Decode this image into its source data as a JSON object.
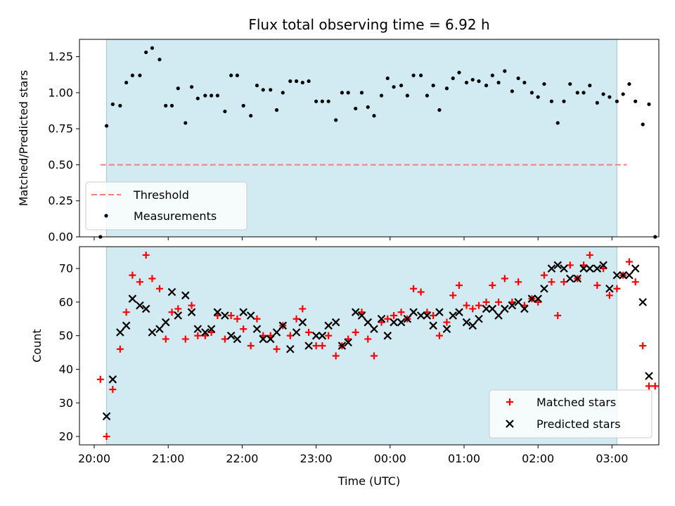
{
  "chart_data": [
    {
      "type": "scatter",
      "title": "Flux total observing time = 6.92 h",
      "xlabel": "",
      "ylabel": "Matched/Predicted stars",
      "ylim": [
        0,
        1.37
      ],
      "yticks": [
        "0.00",
        "0.25",
        "0.50",
        "0.75",
        "1.00",
        "1.25"
      ],
      "shaded_interval": [
        "20:10",
        "03:04"
      ],
      "shade_color": "#add8e6",
      "threshold": {
        "name": "Threshold",
        "value": 0.5,
        "x_range": [
          "20:05",
          "03:12"
        ],
        "color": "#f08080"
      },
      "legend": {
        "position": "lower-left",
        "entries": [
          "Threshold",
          "Measurements"
        ]
      },
      "series": [
        {
          "name": "Measurements",
          "color": "#000000",
          "points": [
            [
              "20:05",
              0.0
            ],
            [
              "20:10",
              0.77
            ],
            [
              "20:15",
              0.92
            ],
            [
              "20:21",
              0.91
            ],
            [
              "20:26",
              1.07
            ],
            [
              "20:31",
              1.12
            ],
            [
              "20:37",
              1.12
            ],
            [
              "20:42",
              1.28
            ],
            [
              "20:47",
              1.31
            ],
            [
              "20:53",
              1.23
            ],
            [
              "20:58",
              0.91
            ],
            [
              "21:03",
              0.91
            ],
            [
              "21:08",
              1.03
            ],
            [
              "21:14",
              0.79
            ],
            [
              "21:19",
              1.04
            ],
            [
              "21:24",
              0.96
            ],
            [
              "21:30",
              0.98
            ],
            [
              "21:35",
              0.98
            ],
            [
              "21:40",
              0.98
            ],
            [
              "21:46",
              0.87
            ],
            [
              "21:51",
              1.12
            ],
            [
              "21:56",
              1.12
            ],
            [
              "22:01",
              0.91
            ],
            [
              "22:07",
              0.84
            ],
            [
              "22:12",
              1.05
            ],
            [
              "22:17",
              1.02
            ],
            [
              "22:23",
              1.02
            ],
            [
              "22:28",
              0.88
            ],
            [
              "22:33",
              1.0
            ],
            [
              "22:39",
              1.08
            ],
            [
              "22:44",
              1.08
            ],
            [
              "22:49",
              1.07
            ],
            [
              "22:54",
              1.08
            ],
            [
              "23:00",
              0.94
            ],
            [
              "23:05",
              0.94
            ],
            [
              "23:10",
              0.94
            ],
            [
              "23:16",
              0.81
            ],
            [
              "23:21",
              1.0
            ],
            [
              "23:26",
              1.0
            ],
            [
              "23:32",
              0.89
            ],
            [
              "23:37",
              1.0
            ],
            [
              "23:42",
              0.9
            ],
            [
              "23:47",
              0.84
            ],
            [
              "23:53",
              0.98
            ],
            [
              "23:58",
              1.1
            ],
            [
              "00:03",
              1.04
            ],
            [
              "00:09",
              1.05
            ],
            [
              "00:14",
              0.98
            ],
            [
              "00:19",
              1.12
            ],
            [
              "00:25",
              1.12
            ],
            [
              "00:30",
              0.98
            ],
            [
              "00:35",
              1.05
            ],
            [
              "00:40",
              0.88
            ],
            [
              "00:46",
              1.03
            ],
            [
              "00:51",
              1.1
            ],
            [
              "00:56",
              1.14
            ],
            [
              "01:02",
              1.07
            ],
            [
              "01:07",
              1.09
            ],
            [
              "01:12",
              1.08
            ],
            [
              "01:18",
              1.05
            ],
            [
              "01:23",
              1.12
            ],
            [
              "01:28",
              1.07
            ],
            [
              "01:33",
              1.15
            ],
            [
              "01:39",
              1.01
            ],
            [
              "01:44",
              1.1
            ],
            [
              "01:49",
              1.07
            ],
            [
              "01:55",
              1.0
            ],
            [
              "02:00",
              0.97
            ],
            [
              "02:05",
              1.06
            ],
            [
              "02:11",
              0.94
            ],
            [
              "02:16",
              0.79
            ],
            [
              "02:21",
              0.94
            ],
            [
              "02:26",
              1.06
            ],
            [
              "02:32",
              1.0
            ],
            [
              "02:37",
              1.0
            ],
            [
              "02:42",
              1.05
            ],
            [
              "02:48",
              0.93
            ],
            [
              "02:53",
              0.99
            ],
            [
              "02:58",
              0.97
            ],
            [
              "03:04",
              0.94
            ],
            [
              "03:09",
              0.99
            ],
            [
              "03:14",
              1.06
            ],
            [
              "03:19",
              0.94
            ],
            [
              "03:25",
              0.78
            ],
            [
              "03:30",
              0.92
            ],
            [
              "03:35",
              0.0
            ]
          ]
        }
      ]
    },
    {
      "type": "scatter",
      "title": "",
      "xlabel": "Time (UTC)",
      "ylabel": "Count",
      "ylim": [
        17.5,
        76.5
      ],
      "yticks": [
        "20",
        "30",
        "40",
        "50",
        "60",
        "70"
      ],
      "xticks": [
        "20:00",
        "21:00",
        "22:00",
        "23:00",
        "00:00",
        "01:00",
        "02:00",
        "03:00"
      ],
      "shaded_interval": [
        "20:10",
        "03:04"
      ],
      "shade_color": "#add8e6",
      "legend": {
        "position": "lower-right",
        "entries": [
          "Matched stars",
          "Predicted stars"
        ]
      },
      "series": [
        {
          "name": "Matched stars",
          "marker": "plus",
          "color": "#ff0000",
          "points": [
            [
              "20:05",
              37
            ],
            [
              "20:10",
              20
            ],
            [
              "20:15",
              34
            ],
            [
              "20:21",
              46
            ],
            [
              "20:26",
              57
            ],
            [
              "20:31",
              68
            ],
            [
              "20:37",
              66
            ],
            [
              "20:42",
              74
            ],
            [
              "20:47",
              67
            ],
            [
              "20:53",
              64
            ],
            [
              "20:58",
              49
            ],
            [
              "21:03",
              57
            ],
            [
              "21:08",
              58
            ],
            [
              "21:14",
              49
            ],
            [
              "21:19",
              59
            ],
            [
              "21:24",
              50
            ],
            [
              "21:30",
              50
            ],
            [
              "21:35",
              51
            ],
            [
              "21:40",
              56
            ],
            [
              "21:46",
              49
            ],
            [
              "21:51",
              56
            ],
            [
              "21:56",
              55
            ],
            [
              "22:01",
              52
            ],
            [
              "22:07",
              47
            ],
            [
              "22:12",
              55
            ],
            [
              "22:17",
              50
            ],
            [
              "22:23",
              50
            ],
            [
              "22:28",
              46
            ],
            [
              "22:33",
              53
            ],
            [
              "22:39",
              50
            ],
            [
              "22:44",
              55
            ],
            [
              "22:49",
              58
            ],
            [
              "22:54",
              51
            ],
            [
              "23:00",
              47
            ],
            [
              "23:05",
              47
            ],
            [
              "23:10",
              50
            ],
            [
              "23:16",
              44
            ],
            [
              "23:21",
              47
            ],
            [
              "23:26",
              49
            ],
            [
              "23:32",
              51
            ],
            [
              "23:37",
              57
            ],
            [
              "23:42",
              49
            ],
            [
              "23:47",
              44
            ],
            [
              "23:53",
              54
            ],
            [
              "23:58",
              55
            ],
            [
              "00:03",
              56
            ],
            [
              "00:09",
              57
            ],
            [
              "00:14",
              55
            ],
            [
              "00:19",
              64
            ],
            [
              "00:25",
              63
            ],
            [
              "00:30",
              57
            ],
            [
              "00:35",
              56
            ],
            [
              "00:40",
              50
            ],
            [
              "00:46",
              54
            ],
            [
              "00:51",
              62
            ],
            [
              "00:56",
              65
            ],
            [
              "01:02",
              59
            ],
            [
              "01:07",
              58
            ],
            [
              "01:12",
              59
            ],
            [
              "01:18",
              60
            ],
            [
              "01:23",
              65
            ],
            [
              "01:28",
              60
            ],
            [
              "01:33",
              67
            ],
            [
              "01:39",
              60
            ],
            [
              "01:44",
              66
            ],
            [
              "01:49",
              59
            ],
            [
              "01:55",
              61
            ],
            [
              "02:00",
              60
            ],
            [
              "02:05",
              68
            ],
            [
              "02:11",
              66
            ],
            [
              "02:16",
              56
            ],
            [
              "02:21",
              66
            ],
            [
              "02:26",
              71
            ],
            [
              "02:32",
              67
            ],
            [
              "02:37",
              71
            ],
            [
              "02:42",
              74
            ],
            [
              "02:48",
              65
            ],
            [
              "02:53",
              70
            ],
            [
              "02:58",
              62
            ],
            [
              "03:04",
              64
            ],
            [
              "03:09",
              68
            ],
            [
              "03:14",
              72
            ],
            [
              "03:19",
              66
            ],
            [
              "03:25",
              47
            ],
            [
              "03:30",
              35
            ],
            [
              "03:35",
              35
            ]
          ]
        },
        {
          "name": "Predicted stars",
          "marker": "x",
          "color": "#000000",
          "points": [
            [
              "20:10",
              26
            ],
            [
              "20:15",
              37
            ],
            [
              "20:21",
              51
            ],
            [
              "20:26",
              53
            ],
            [
              "20:31",
              61
            ],
            [
              "20:37",
              59
            ],
            [
              "20:42",
              58
            ],
            [
              "20:47",
              51
            ],
            [
              "20:53",
              52
            ],
            [
              "20:58",
              54
            ],
            [
              "21:03",
              63
            ],
            [
              "21:08",
              56
            ],
            [
              "21:14",
              62
            ],
            [
              "21:19",
              57
            ],
            [
              "21:24",
              52
            ],
            [
              "21:30",
              51
            ],
            [
              "21:35",
              52
            ],
            [
              "21:40",
              57
            ],
            [
              "21:46",
              56
            ],
            [
              "21:51",
              50
            ],
            [
              "21:56",
              49
            ],
            [
              "22:01",
              57
            ],
            [
              "22:07",
              56
            ],
            [
              "22:12",
              52
            ],
            [
              "22:17",
              49
            ],
            [
              "22:23",
              49
            ],
            [
              "22:28",
              51
            ],
            [
              "22:33",
              53
            ],
            [
              "22:39",
              46
            ],
            [
              "22:44",
              51
            ],
            [
              "22:49",
              54
            ],
            [
              "22:54",
              47
            ],
            [
              "23:00",
              50
            ],
            [
              "23:05",
              50
            ],
            [
              "23:10",
              53
            ],
            [
              "23:16",
              54
            ],
            [
              "23:21",
              47
            ],
            [
              "23:26",
              48
            ],
            [
              "23:32",
              57
            ],
            [
              "23:37",
              56
            ],
            [
              "23:42",
              54
            ],
            [
              "23:47",
              52
            ],
            [
              "23:53",
              55
            ],
            [
              "23:58",
              50
            ],
            [
              "00:03",
              54
            ],
            [
              "00:09",
              54
            ],
            [
              "00:14",
              55
            ],
            [
              "00:19",
              57
            ],
            [
              "00:25",
              56
            ],
            [
              "00:30",
              56
            ],
            [
              "00:35",
              53
            ],
            [
              "00:40",
              57
            ],
            [
              "00:46",
              52
            ],
            [
              "00:51",
              56
            ],
            [
              "00:56",
              57
            ],
            [
              "01:02",
              54
            ],
            [
              "01:07",
              53
            ],
            [
              "01:12",
              55
            ],
            [
              "01:18",
              58
            ],
            [
              "01:23",
              58
            ],
            [
              "01:28",
              56
            ],
            [
              "01:33",
              58
            ],
            [
              "01:39",
              59
            ],
            [
              "01:44",
              60
            ],
            [
              "01:49",
              58
            ],
            [
              "01:55",
              61
            ],
            [
              "02:00",
              61
            ],
            [
              "02:05",
              64
            ],
            [
              "02:11",
              70
            ],
            [
              "02:16",
              71
            ],
            [
              "02:21",
              70
            ],
            [
              "02:26",
              67
            ],
            [
              "02:32",
              67
            ],
            [
              "02:37",
              70
            ],
            [
              "02:42",
              70
            ],
            [
              "02:48",
              70
            ],
            [
              "02:53",
              71
            ],
            [
              "02:58",
              64
            ],
            [
              "03:04",
              68
            ],
            [
              "03:09",
              68
            ],
            [
              "03:14",
              68
            ],
            [
              "03:19",
              70
            ],
            [
              "03:25",
              60
            ],
            [
              "03:30",
              38
            ]
          ]
        }
      ]
    }
  ]
}
